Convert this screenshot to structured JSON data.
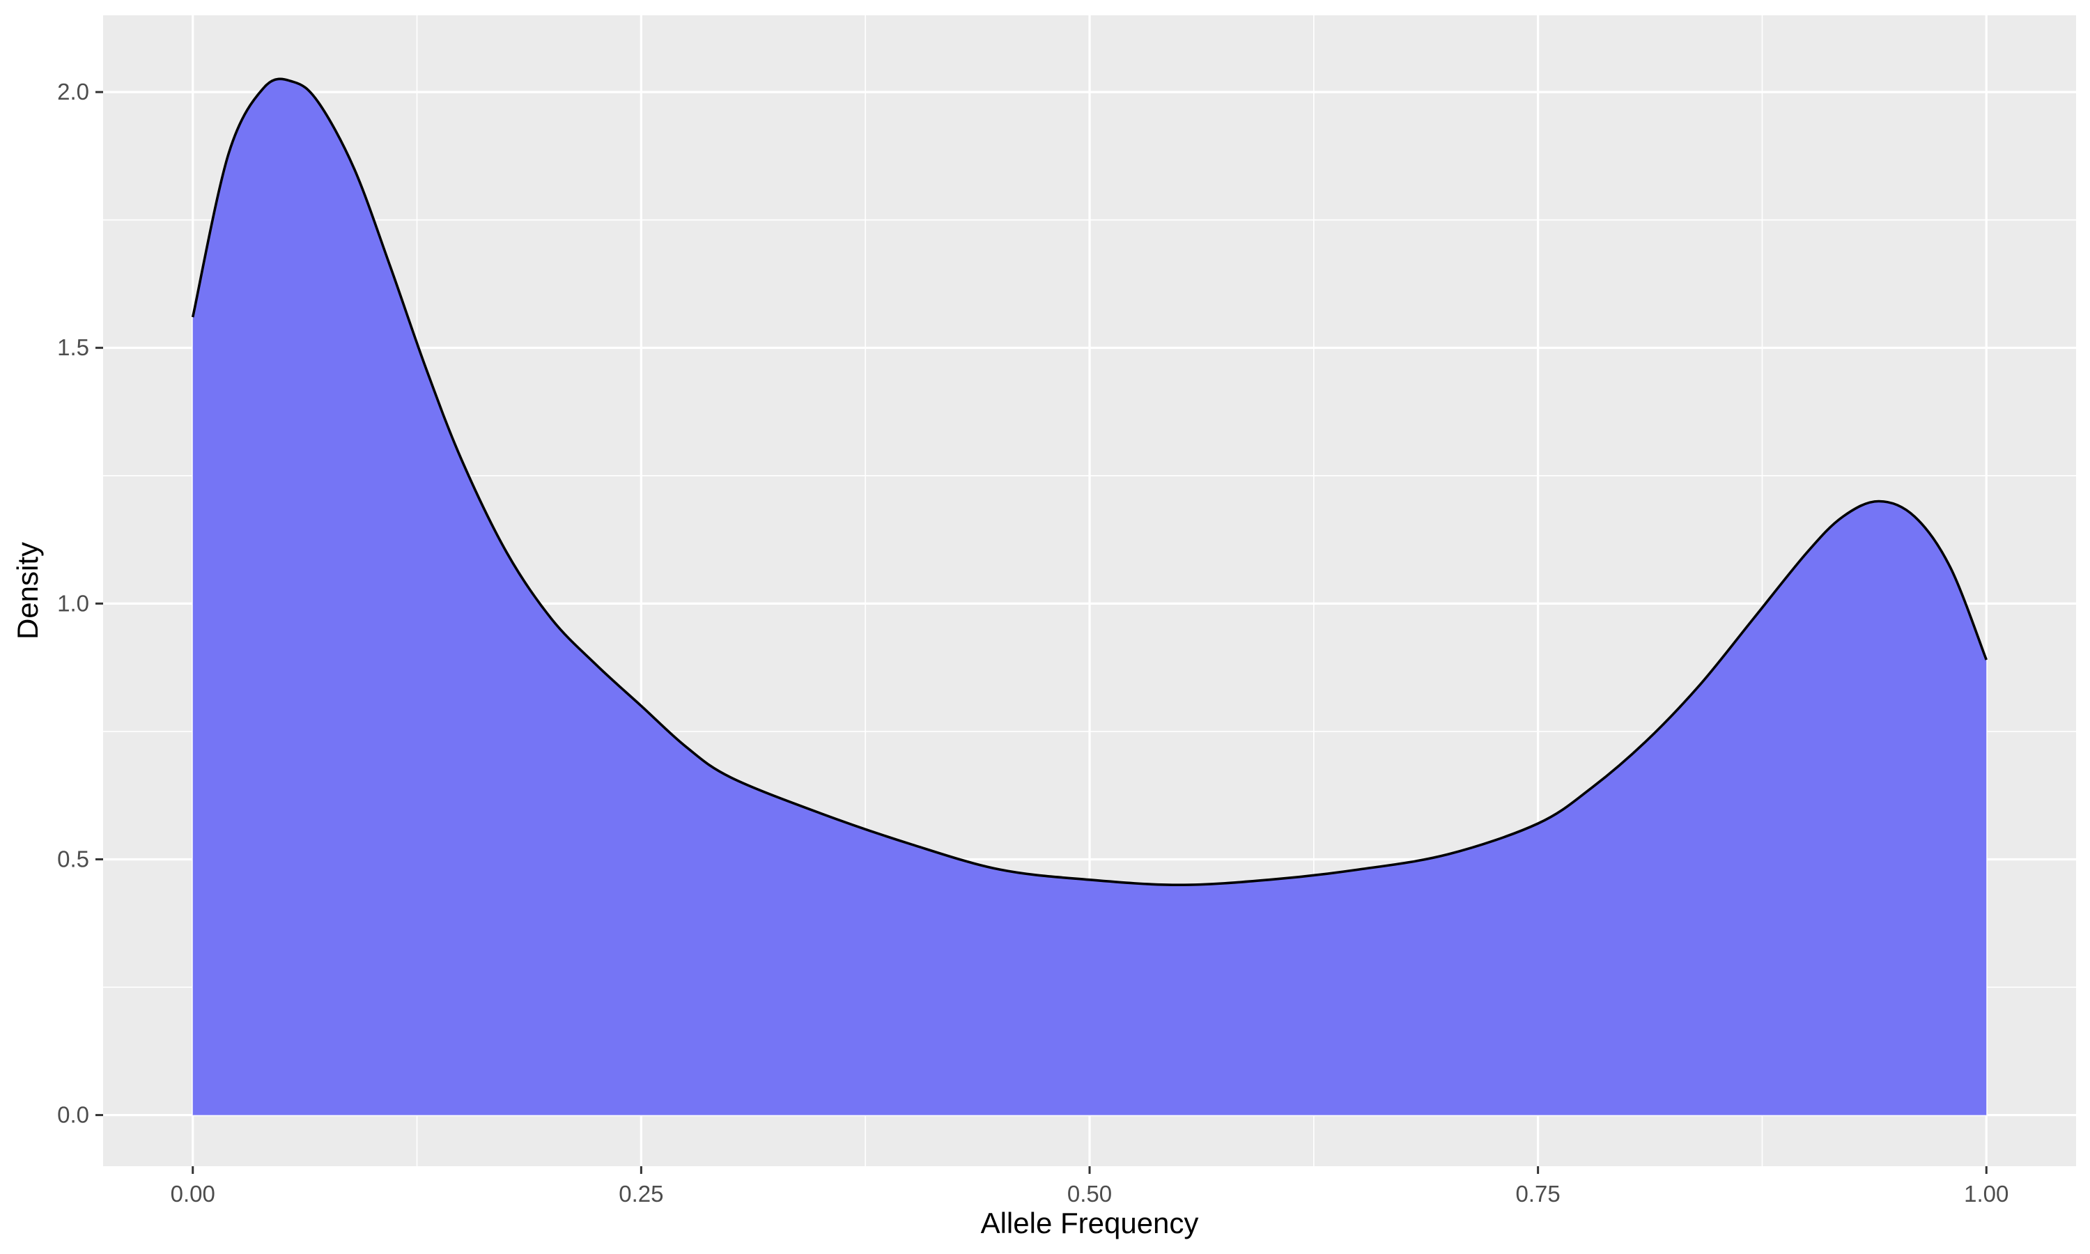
{
  "chart_data": {
    "type": "area",
    "title": "",
    "xlabel": "Allele Frequency",
    "ylabel": "Density",
    "xlim": [
      -0.05,
      1.05
    ],
    "ylim": [
      -0.1,
      2.15
    ],
    "x_ticks": [
      {
        "value": 0.0,
        "label": "0.00"
      },
      {
        "value": 0.25,
        "label": "0.25"
      },
      {
        "value": 0.5,
        "label": "0.50"
      },
      {
        "value": 0.75,
        "label": "0.75"
      },
      {
        "value": 1.0,
        "label": "1.00"
      }
    ],
    "y_ticks": [
      {
        "value": 0.0,
        "label": "0.0"
      },
      {
        "value": 0.5,
        "label": "0.5"
      },
      {
        "value": 1.0,
        "label": "1.0"
      },
      {
        "value": 1.5,
        "label": "1.5"
      },
      {
        "value": 2.0,
        "label": "2.0"
      }
    ],
    "grid": true,
    "legend": "none",
    "series": [
      {
        "fill_color": "#7575f5",
        "line_color": "#000000",
        "x": [
          0.0,
          0.02,
          0.04,
          0.056,
          0.07,
          0.09,
          0.11,
          0.13,
          0.15,
          0.175,
          0.2,
          0.225,
          0.25,
          0.275,
          0.3,
          0.35,
          0.4,
          0.45,
          0.5,
          0.55,
          0.6,
          0.65,
          0.7,
          0.75,
          0.78,
          0.81,
          0.84,
          0.87,
          0.9,
          0.92,
          0.94,
          0.96,
          0.98,
          1.0
        ],
        "y": [
          1.56,
          1.88,
          2.01,
          2.02,
          1.98,
          1.85,
          1.66,
          1.46,
          1.28,
          1.1,
          0.97,
          0.88,
          0.8,
          0.72,
          0.66,
          0.59,
          0.53,
          0.48,
          0.46,
          0.45,
          0.46,
          0.48,
          0.51,
          0.57,
          0.64,
          0.73,
          0.84,
          0.97,
          1.1,
          1.17,
          1.2,
          1.17,
          1.07,
          0.89
        ]
      }
    ]
  }
}
